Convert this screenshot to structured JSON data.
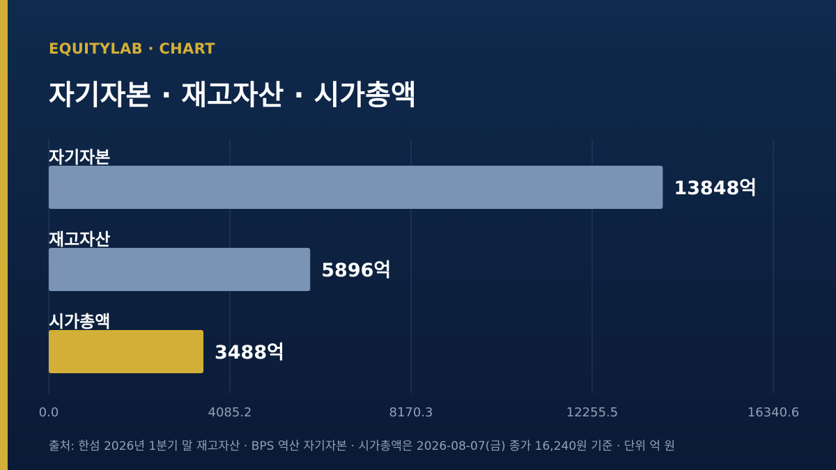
{
  "header": {
    "eyebrow": "EQUITYLAB · CHART",
    "title": "자기자본 · 재고자산 · 시가총액"
  },
  "footer": {
    "source": "출처: 한섬 2026년 1분기 말 재고자산 · BPS 역산 자기자본 · 시가총액은 2026-08-07(금) 종가 16,240원 기준 · 단위 억 원"
  },
  "colors": {
    "background": "#0f2a4d",
    "accent": "#d4af37",
    "bar_default": "#7b93b5",
    "bar_highlight": "#d4af37",
    "grid": "#2a3f63",
    "tick_text": "#8fa0ba"
  },
  "chart_data": {
    "type": "bar",
    "orientation": "horizontal",
    "categories": [
      "자기자본",
      "재고자산",
      "시가총액"
    ],
    "values": [
      13848,
      5896,
      3488
    ],
    "value_labels": [
      "13848억",
      "5896억",
      "3488억"
    ],
    "highlight": [
      false,
      false,
      true
    ],
    "xlim": [
      0,
      16340.6
    ],
    "ticks": [
      0.0,
      4085.2,
      8170.3,
      12255.5,
      16340.6
    ],
    "tick_labels": [
      "0.0",
      "4085.2",
      "8170.3",
      "12255.5",
      "16340.6"
    ],
    "grid": true
  }
}
